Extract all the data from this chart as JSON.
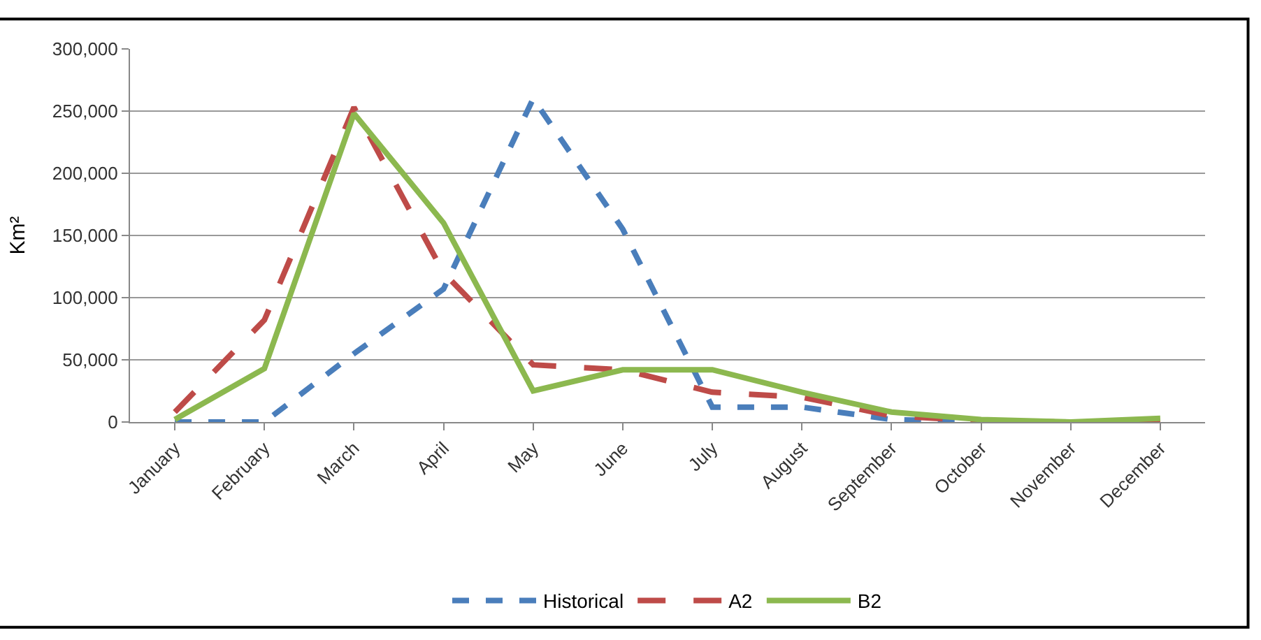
{
  "chart_data": {
    "type": "line",
    "ylabel": "Km²",
    "categories": [
      "January",
      "February",
      "March",
      "April",
      "May",
      "June",
      "July",
      "August",
      "September",
      "October",
      "November",
      "December"
    ],
    "series": [
      {
        "name": "Historical",
        "color": "#4a7ebb",
        "line_style": "dotted",
        "values": [
          0,
          0,
          55000,
          107000,
          260000,
          155000,
          12000,
          12000,
          2000,
          0,
          0,
          0
        ]
      },
      {
        "name": "A2",
        "color": "#be4b48",
        "line_style": "dashed",
        "values": [
          8000,
          82000,
          253000,
          120000,
          46000,
          42000,
          24000,
          20000,
          5000,
          1000,
          0,
          0
        ]
      },
      {
        "name": "B2",
        "color": "#8cb84f",
        "line_style": "solid",
        "values": [
          2000,
          43000,
          248000,
          160000,
          25000,
          42000,
          42000,
          24000,
          8000,
          2000,
          0,
          3000
        ]
      }
    ],
    "ylim": [
      0,
      300000
    ],
    "yticks": [
      {
        "value": 0,
        "label": "0"
      },
      {
        "value": 50000,
        "label": "50,000"
      },
      {
        "value": 100000,
        "label": "100,000"
      },
      {
        "value": 150000,
        "label": "150,000"
      },
      {
        "value": 200000,
        "label": "200,000"
      },
      {
        "value": 250000,
        "label": "250,000"
      },
      {
        "value": 300000,
        "label": "300,000"
      }
    ],
    "grid": "y",
    "legend": "bottom",
    "marker": "none"
  }
}
